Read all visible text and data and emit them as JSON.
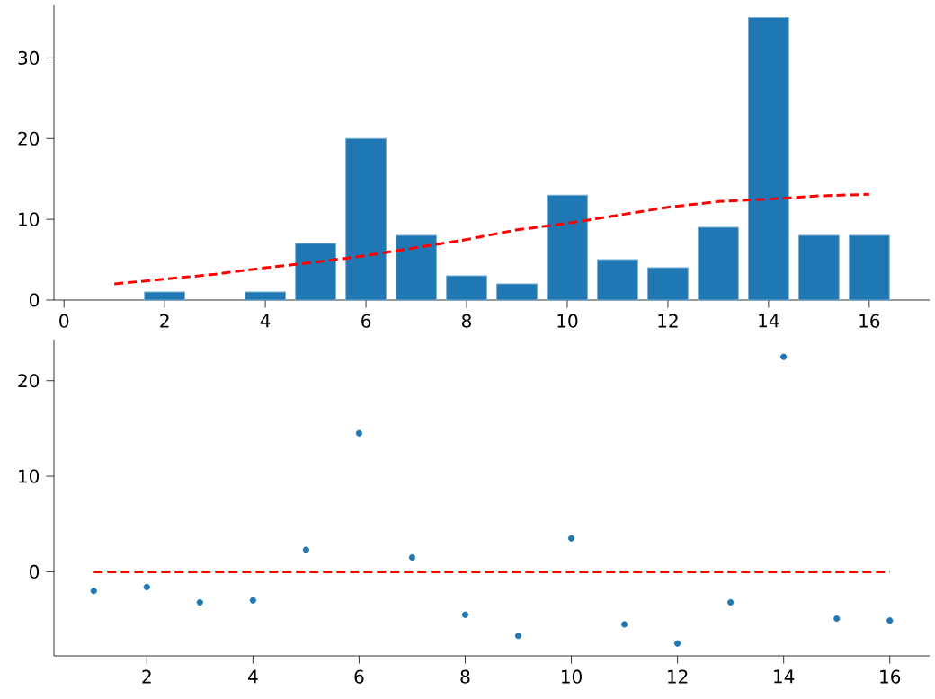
{
  "chart_data": [
    {
      "type": "bar",
      "xlim": [
        -0.2,
        17.2
      ],
      "ylim": [
        0,
        36.5
      ],
      "xticks": [
        0,
        2,
        4,
        6,
        8,
        10,
        12,
        14,
        16
      ],
      "yticks": [
        0,
        10,
        20,
        30
      ],
      "series": [
        {
          "color": "#1f77b4",
          "x": [
            2,
            4,
            5,
            6,
            7,
            8,
            9,
            10,
            11,
            12,
            13,
            14,
            15,
            16
          ],
          "values": [
            1,
            1,
            7,
            20,
            8,
            3,
            2,
            13,
            5,
            4,
            9,
            35,
            8,
            8
          ]
        },
        {
          "type": "line",
          "color": "#ff0000",
          "line_style": "dashed",
          "marker": "none",
          "x": [
            1,
            2,
            3,
            4,
            5,
            6,
            7,
            8,
            9,
            10,
            11,
            12,
            13,
            14,
            15,
            16
          ],
          "values": [
            2,
            2.6,
            3.2,
            4.0,
            4.7,
            5.5,
            6.5,
            7.5,
            8.7,
            9.5,
            10.5,
            11.5,
            12.2,
            12.5,
            12.9,
            13.1
          ]
        }
      ]
    },
    {
      "type": "scatter",
      "xlim": [
        0.25,
        16.75
      ],
      "ylim": [
        -8.8,
        24.3
      ],
      "xticks": [
        2,
        4,
        6,
        8,
        10,
        12,
        14,
        16
      ],
      "yticks": [
        0,
        10,
        20
      ],
      "series": [
        {
          "color": "#1f77b4",
          "marker": "circle",
          "x": [
            1,
            2,
            3,
            4,
            5,
            6,
            7,
            8,
            9,
            10,
            11,
            12,
            13,
            14,
            15,
            16
          ],
          "values": [
            -2.0,
            -1.6,
            -3.2,
            -3.0,
            2.3,
            14.5,
            1.5,
            -4.5,
            -6.7,
            3.5,
            -5.5,
            -7.5,
            -3.2,
            22.5,
            -4.9,
            -5.1
          ]
        },
        {
          "type": "line",
          "color": "#ff0000",
          "line_style": "dashed",
          "marker": "none",
          "x": [
            1,
            16
          ],
          "values": [
            0,
            0
          ]
        }
      ]
    }
  ]
}
